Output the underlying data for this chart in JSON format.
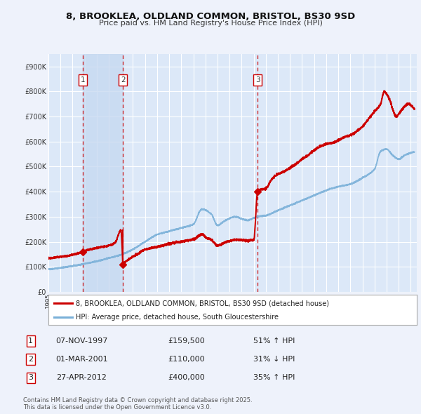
{
  "title": "8, BROOKLEA, OLDLAND COMMON, BRISTOL, BS30 9SD",
  "subtitle": "Price paid vs. HM Land Registry's House Price Index (HPI)",
  "background_color": "#eef2fb",
  "plot_bg_color": "#dce8f8",
  "grid_color": "#ffffff",
  "xlim_start": 1995.0,
  "xlim_end": 2025.5,
  "ylim_min": 0,
  "ylim_max": 950000,
  "sale_dates": [
    1997.854,
    2001.163,
    2012.322
  ],
  "sale_prices": [
    159500,
    110000,
    400000
  ],
  "sale_labels": [
    "1",
    "2",
    "3"
  ],
  "vline_color": "#cc0000",
  "sale_dot_color": "#cc0000",
  "hpi_line_color": "#7ab0d8",
  "price_line_color": "#cc0000",
  "legend_label_price": "8, BROOKLEA, OLDLAND COMMON, BRISTOL, BS30 9SD (detached house)",
  "legend_label_hpi": "HPI: Average price, detached house, South Gloucestershire",
  "table_data": [
    {
      "num": "1",
      "date": "07-NOV-1997",
      "price": "£159,500",
      "pct": "51% ↑ HPI"
    },
    {
      "num": "2",
      "date": "01-MAR-2001",
      "price": "£110,000",
      "pct": "31% ↓ HPI"
    },
    {
      "num": "3",
      "date": "27-APR-2012",
      "price": "£400,000",
      "pct": "35% ↑ HPI"
    }
  ],
  "footnote": "Contains HM Land Registry data © Crown copyright and database right 2025.\nThis data is licensed under the Open Government Licence v3.0.",
  "shade_regions": [
    [
      1997.854,
      2001.163
    ]
  ],
  "hpi_keypoints": [
    [
      1995.0,
      90000
    ],
    [
      1996.0,
      96000
    ],
    [
      1997.0,
      103000
    ],
    [
      1998.0,
      112000
    ],
    [
      1999.0,
      122000
    ],
    [
      2000.0,
      135000
    ],
    [
      2001.0,
      148000
    ],
    [
      2002.0,
      170000
    ],
    [
      2003.0,
      200000
    ],
    [
      2004.0,
      228000
    ],
    [
      2005.0,
      242000
    ],
    [
      2006.0,
      255000
    ],
    [
      2007.0,
      270000
    ],
    [
      2007.7,
      330000
    ],
    [
      2008.5,
      310000
    ],
    [
      2009.0,
      265000
    ],
    [
      2009.5,
      280000
    ],
    [
      2010.0,
      293000
    ],
    [
      2010.5,
      300000
    ],
    [
      2011.0,
      292000
    ],
    [
      2011.5,
      285000
    ],
    [
      2012.0,
      295000
    ],
    [
      2012.3,
      300000
    ],
    [
      2013.0,
      305000
    ],
    [
      2014.0,
      325000
    ],
    [
      2015.0,
      345000
    ],
    [
      2016.0,
      365000
    ],
    [
      2017.0,
      385000
    ],
    [
      2018.0,
      405000
    ],
    [
      2019.0,
      420000
    ],
    [
      2020.0,
      430000
    ],
    [
      2021.0,
      455000
    ],
    [
      2022.0,
      490000
    ],
    [
      2022.5,
      560000
    ],
    [
      2023.0,
      570000
    ],
    [
      2023.5,
      545000
    ],
    [
      2024.0,
      530000
    ],
    [
      2024.5,
      545000
    ],
    [
      2025.0,
      555000
    ]
  ],
  "price_keypoints": [
    [
      1995.0,
      135000
    ],
    [
      1996.0,
      140000
    ],
    [
      1997.0,
      148000
    ],
    [
      1997.854,
      160000
    ],
    [
      1998.0,
      163000
    ],
    [
      1998.5,
      170000
    ],
    [
      1999.0,
      175000
    ],
    [
      1999.5,
      180000
    ],
    [
      2000.0,
      185000
    ],
    [
      2000.5,
      195000
    ],
    [
      2001.0,
      245000
    ],
    [
      2001.163,
      110000
    ],
    [
      2001.5,
      125000
    ],
    [
      2002.0,
      140000
    ],
    [
      2002.5,
      155000
    ],
    [
      2003.0,
      170000
    ],
    [
      2003.5,
      175000
    ],
    [
      2004.0,
      180000
    ],
    [
      2004.5,
      185000
    ],
    [
      2005.0,
      192000
    ],
    [
      2005.5,
      197000
    ],
    [
      2006.0,
      200000
    ],
    [
      2006.5,
      205000
    ],
    [
      2007.0,
      210000
    ],
    [
      2007.5,
      225000
    ],
    [
      2007.8,
      230000
    ],
    [
      2008.0,
      218000
    ],
    [
      2008.5,
      208000
    ],
    [
      2009.0,
      185000
    ],
    [
      2009.5,
      195000
    ],
    [
      2010.0,
      203000
    ],
    [
      2010.5,
      208000
    ],
    [
      2011.0,
      207000
    ],
    [
      2011.5,
      205000
    ],
    [
      2012.0,
      207000
    ],
    [
      2012.322,
      400000
    ],
    [
      2012.5,
      407000
    ],
    [
      2013.0,
      413000
    ],
    [
      2013.5,
      450000
    ],
    [
      2014.0,
      470000
    ],
    [
      2014.5,
      480000
    ],
    [
      2015.0,
      495000
    ],
    [
      2015.5,
      510000
    ],
    [
      2016.0,
      530000
    ],
    [
      2016.5,
      545000
    ],
    [
      2017.0,
      565000
    ],
    [
      2017.5,
      580000
    ],
    [
      2018.0,
      590000
    ],
    [
      2018.5,
      595000
    ],
    [
      2019.0,
      605000
    ],
    [
      2019.5,
      618000
    ],
    [
      2020.0,
      625000
    ],
    [
      2020.5,
      640000
    ],
    [
      2021.0,
      660000
    ],
    [
      2021.5,
      690000
    ],
    [
      2022.0,
      720000
    ],
    [
      2022.5,
      750000
    ],
    [
      2022.8,
      800000
    ],
    [
      2023.0,
      790000
    ],
    [
      2023.3,
      760000
    ],
    [
      2023.5,
      730000
    ],
    [
      2023.8,
      700000
    ],
    [
      2024.0,
      710000
    ],
    [
      2024.3,
      730000
    ],
    [
      2024.8,
      750000
    ],
    [
      2025.0,
      745000
    ]
  ]
}
